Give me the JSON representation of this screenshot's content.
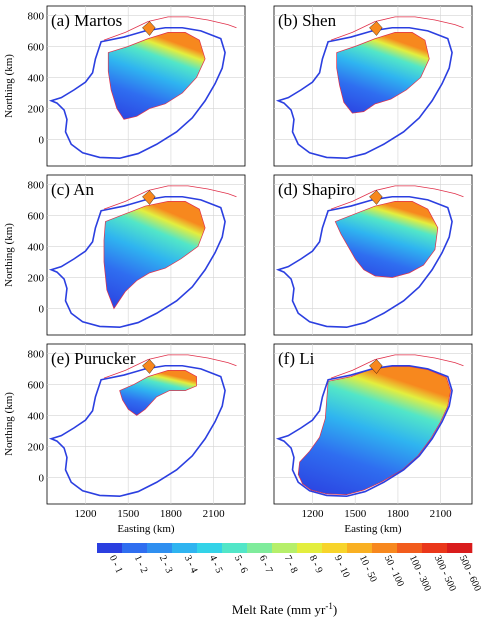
{
  "chart_data": {
    "type": "heatmap",
    "panels": [
      {
        "label": "(a) Martos",
        "method": "Martos"
      },
      {
        "label": "(b) Shen",
        "method": "Shen"
      },
      {
        "label": "(c) An",
        "method": "An"
      },
      {
        "label": "(d) Shapiro",
        "method": "Shapiro"
      },
      {
        "label": "(e) Purucker",
        "method": "Purucker"
      },
      {
        "label": "(f) Li",
        "method": "Li"
      }
    ],
    "xlabel": "Easting (km)",
    "ylabel": "Northing (km)",
    "xticks": [
      1200,
      1500,
      1800,
      2100
    ],
    "yticks": [
      0,
      200,
      400,
      600,
      800
    ],
    "xlim": [
      930,
      2320
    ],
    "ylim": [
      -170,
      860
    ],
    "grid": true,
    "colorbar": {
      "label": "Melt Rate (mm yr",
      "label_sup": "-1",
      "label_close": ")",
      "classes": [
        "0 - 1",
        "1 - 2",
        "2 - 3",
        "3 - 4",
        "4 - 5",
        "5 - 6",
        "6 - 7",
        "7 - 8",
        "8 - 9",
        "9 - 10",
        "10 - 50",
        "50 - 100",
        "100 - 300",
        "300 - 500",
        "500 - 600"
      ],
      "colors": [
        "#2b3fe0",
        "#2f6ef0",
        "#2f8ff0",
        "#2fb4f0",
        "#33d3e8",
        "#52e6c8",
        "#7fec9c",
        "#b6ef6a",
        "#e3ee3e",
        "#f7d42b",
        "#f9b022",
        "#f7881e",
        "#f25c1d",
        "#ea371a",
        "#d91c1c"
      ]
    }
  }
}
